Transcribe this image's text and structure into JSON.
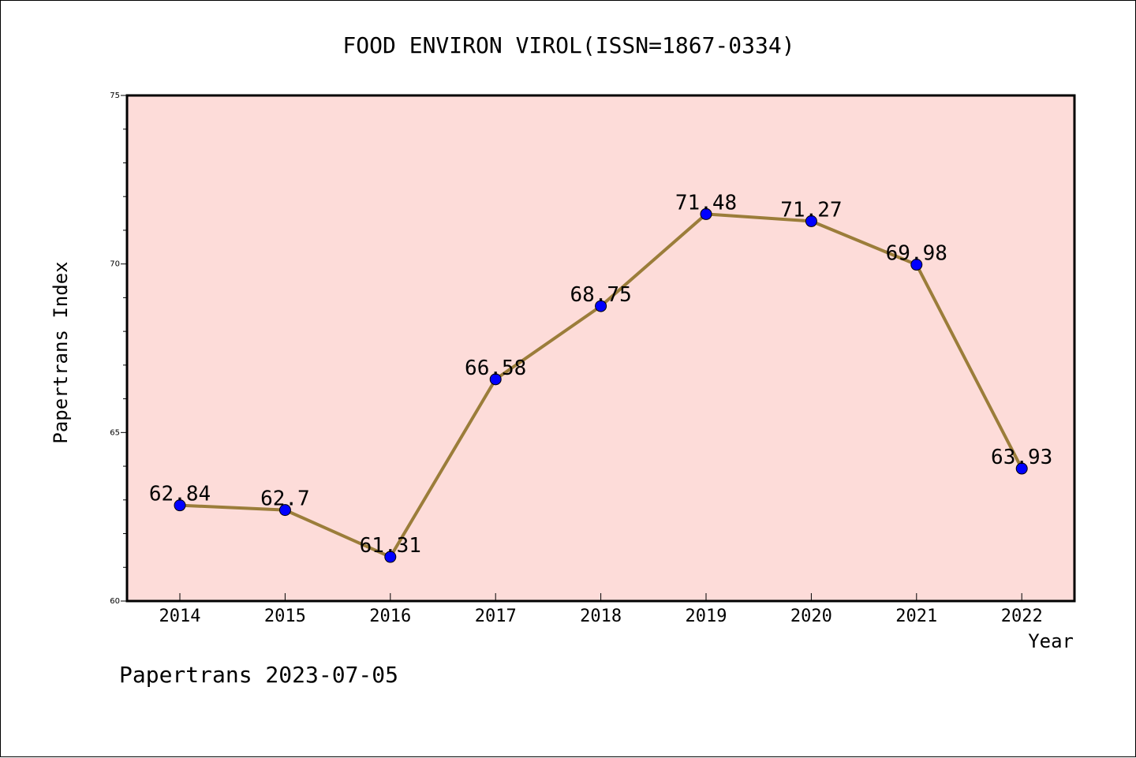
{
  "footer": "Papertrans 2023-07-05",
  "chart_data": {
    "type": "line",
    "title": "FOOD ENVIRON VIROL(ISSN=1867-0334)",
    "xlabel": "Year",
    "ylabel": "Papertrans Index",
    "categories": [
      "2014",
      "2015",
      "2016",
      "2017",
      "2018",
      "2019",
      "2020",
      "2021",
      "2022"
    ],
    "series": [
      {
        "values": [
          62.84,
          62.7,
          61.31,
          66.58,
          68.75,
          71.48,
          71.27,
          69.98,
          63.93
        ],
        "data_labels": [
          "62.84",
          "62.7",
          "61.31",
          "66.58",
          "68.75",
          "71.48",
          "71.27",
          "69.98",
          "63.93"
        ],
        "line_color": "#9b7d3a",
        "marker_color": "#0000ff"
      }
    ],
    "ylim": [
      60,
      75
    ],
    "yticks": [
      "60",
      "65",
      "70",
      "75"
    ],
    "plot_background": "#fddcd9",
    "grid": false,
    "legend": "none"
  }
}
